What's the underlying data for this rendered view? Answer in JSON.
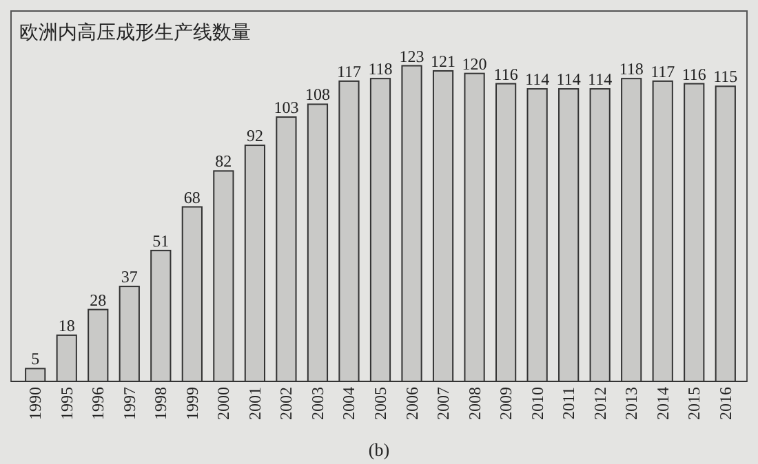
{
  "chart_data": {
    "type": "bar",
    "title": "欧洲内高压成形生产线数量",
    "categories": [
      "1990",
      "1995",
      "1996",
      "1997",
      "1998",
      "1999",
      "2000",
      "2001",
      "2002",
      "2003",
      "2004",
      "2005",
      "2006",
      "2007",
      "2008",
      "2009",
      "2010",
      "2011",
      "2012",
      "2013",
      "2014",
      "2015",
      "2016"
    ],
    "values": [
      5,
      18,
      28,
      37,
      51,
      68,
      82,
      92,
      103,
      108,
      117,
      118,
      123,
      121,
      120,
      116,
      114,
      114,
      114,
      118,
      117,
      116,
      115
    ],
    "color": "#c9c9c7",
    "data_labels": true,
    "annotations": [
      "(b)"
    ]
  }
}
